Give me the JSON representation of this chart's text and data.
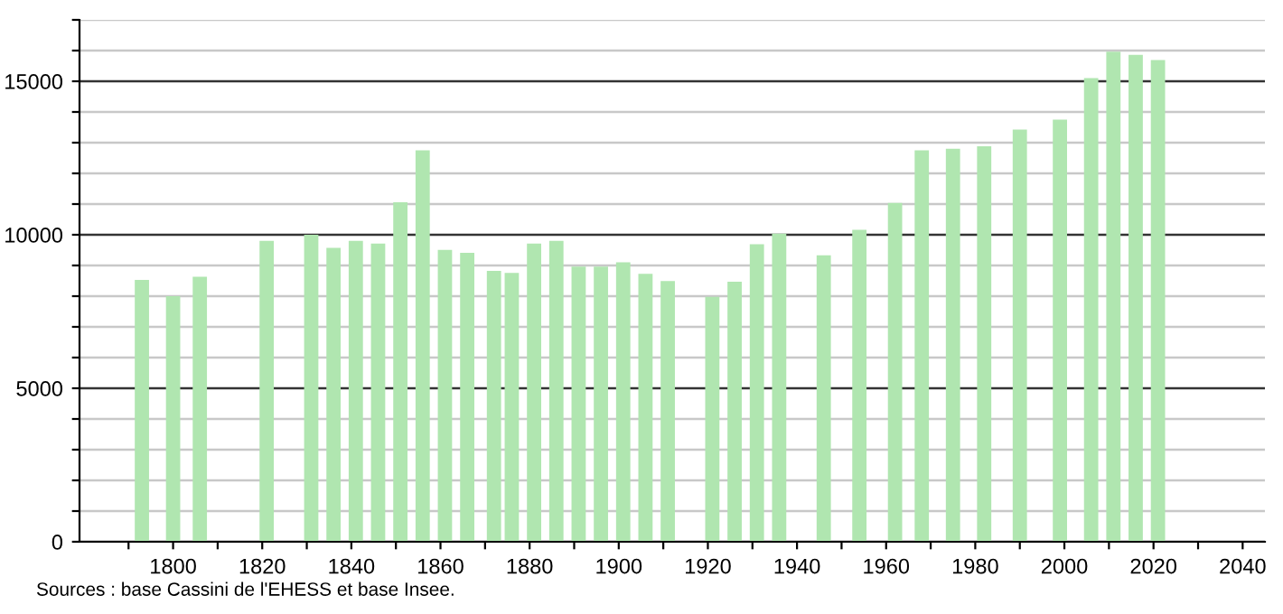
{
  "chart_data": {
    "type": "bar",
    "color": "#b0e6b0",
    "x": [
      1793,
      1800,
      1806,
      1821,
      1831,
      1836,
      1841,
      1846,
      1851,
      1856,
      1861,
      1866,
      1872,
      1876,
      1881,
      1886,
      1891,
      1896,
      1901,
      1906,
      1911,
      1921,
      1926,
      1931,
      1936,
      1946,
      1954,
      1962,
      1968,
      1975,
      1982,
      1990,
      1999,
      2006,
      2011,
      2016,
      2021
    ],
    "values": [
      8530,
      8000,
      8630,
      9800,
      10000,
      9570,
      9800,
      9710,
      11060,
      12750,
      9510,
      9410,
      8820,
      8760,
      9710,
      9800,
      8960,
      8960,
      9100,
      8730,
      8490,
      7980,
      8470,
      9690,
      10040,
      9330,
      10160,
      11040,
      12750,
      12800,
      12880,
      13430,
      13750,
      15100,
      15960,
      15860,
      15690
    ],
    "xlim": [
      1779,
      2045
    ],
    "xticks": [
      {
        "value": 1790,
        "label": null
      },
      1800,
      {
        "value": 1810,
        "label": null
      },
      1820,
      {
        "value": 1830,
        "label": null
      },
      1840,
      {
        "value": 1850,
        "label": null
      },
      1860,
      {
        "value": 1870,
        "label": null
      },
      1880,
      {
        "value": 1890,
        "label": null
      },
      1900,
      {
        "value": 1910,
        "label": null
      },
      1920,
      {
        "value": 1930,
        "label": null
      },
      1940,
      {
        "value": 1950,
        "label": null
      },
      1960,
      {
        "value": 1970,
        "label": null
      },
      1980,
      {
        "value": 1990,
        "label": null
      },
      2000,
      {
        "value": 2010,
        "label": null
      },
      2020,
      {
        "value": 2030,
        "label": null
      },
      2040
    ],
    "ylim": [
      0,
      17000
    ],
    "yticks": [
      0,
      {
        "value": 1000,
        "label": null
      },
      {
        "value": 2000,
        "label": null
      },
      {
        "value": 3000,
        "label": null
      },
      {
        "value": 4000,
        "label": null
      },
      5000,
      {
        "value": 6000,
        "label": null
      },
      {
        "value": 7000,
        "label": null
      },
      {
        "value": 8000,
        "label": null
      },
      {
        "value": 9000,
        "label": null
      },
      10000,
      {
        "value": 11000,
        "label": null
      },
      {
        "value": 12000,
        "label": null
      },
      {
        "value": 13000,
        "label": null
      },
      {
        "value": 14000,
        "label": null
      },
      15000,
      {
        "value": 16000,
        "label": null
      },
      {
        "value": 17000,
        "label": null
      }
    ],
    "grid": "y",
    "annotations": [
      "Sources : base Cassini de l'EHESS et base Insee."
    ]
  }
}
